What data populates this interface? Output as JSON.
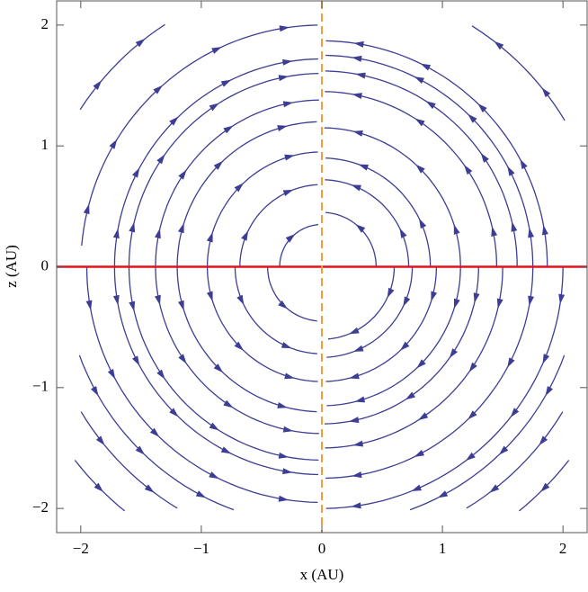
{
  "chart_data": {
    "type": "stream",
    "xlabel": "x (AU)",
    "ylabel": "z (AU)",
    "xlim": [
      -2.2,
      2.2
    ],
    "ylim": [
      -2.2,
      2.2
    ],
    "xticks": [
      {
        "value": -2,
        "label": "−2"
      },
      {
        "value": -1,
        "label": "−1"
      },
      0,
      1,
      2
    ],
    "yticks": [
      {
        "value": -2,
        "label": "−2"
      },
      {
        "value": -1,
        "label": "−1"
      },
      0,
      1,
      2
    ],
    "color": "#3d3d94",
    "hline": {
      "value": 0,
      "color": "#e0141a"
    },
    "vline": {
      "value": 0,
      "color": "#f39c3c"
    },
    "streamlines": [
      {
        "r": 0.35,
        "from": 180,
        "to": 95
      },
      {
        "r": 0.68,
        "from": 180,
        "to": 93
      },
      {
        "r": 0.95,
        "from": 180,
        "to": 92
      },
      {
        "r": 1.2,
        "from": 180,
        "to": 92
      },
      {
        "r": 1.38,
        "from": 180,
        "to": 91
      },
      {
        "r": 1.6,
        "from": 180,
        "to": 91
      },
      {
        "r": 1.72,
        "from": 180,
        "to": 91
      },
      {
        "r": 2.0,
        "from": 175,
        "to": 91
      },
      {
        "r": 2.39,
        "from": 147,
        "to": 123
      },
      {
        "r": 0.45,
        "from": 0,
        "to": 86
      },
      {
        "r": 0.72,
        "from": 0,
        "to": 88
      },
      {
        "r": 0.9,
        "from": 0,
        "to": 88
      },
      {
        "r": 1.15,
        "from": 0,
        "to": 89
      },
      {
        "r": 1.45,
        "from": 0,
        "to": 89
      },
      {
        "r": 1.62,
        "from": 0,
        "to": 89
      },
      {
        "r": 1.75,
        "from": 0,
        "to": 89
      },
      {
        "r": 1.87,
        "from": 0,
        "to": 89
      },
      {
        "r": 2.35,
        "from": 31,
        "to": 58
      },
      {
        "r": 0.45,
        "from": 180,
        "to": 265
      },
      {
        "r": 0.72,
        "from": 180,
        "to": 267
      },
      {
        "r": 0.95,
        "from": 180,
        "to": 268
      },
      {
        "r": 1.2,
        "from": 180,
        "to": 268
      },
      {
        "r": 1.38,
        "from": 180,
        "to": 269
      },
      {
        "r": 1.6,
        "from": 180,
        "to": 269
      },
      {
        "r": 1.72,
        "from": 180,
        "to": 269
      },
      {
        "r": 1.95,
        "from": 180,
        "to": 269
      },
      {
        "r": 2.14,
        "from": 200,
        "to": 250
      },
      {
        "r": 2.33,
        "from": 211,
        "to": 239
      },
      {
        "r": 2.6,
        "from": 218,
        "to": 231
      },
      {
        "r": 0.6,
        "from": 360,
        "to": 275
      },
      {
        "r": 0.75,
        "from": 360,
        "to": 273
      },
      {
        "r": 0.95,
        "from": 360,
        "to": 272
      },
      {
        "r": 1.15,
        "from": 360,
        "to": 272
      },
      {
        "r": 1.3,
        "from": 360,
        "to": 271
      },
      {
        "r": 1.5,
        "from": 360,
        "to": 271
      },
      {
        "r": 1.75,
        "from": 360,
        "to": 271
      },
      {
        "r": 2.0,
        "from": 360,
        "to": 271
      },
      {
        "r": 2.14,
        "from": 340,
        "to": 290
      },
      {
        "r": 2.33,
        "from": 329,
        "to": 301
      },
      {
        "r": 2.6,
        "from": 322,
        "to": 309
      }
    ]
  }
}
